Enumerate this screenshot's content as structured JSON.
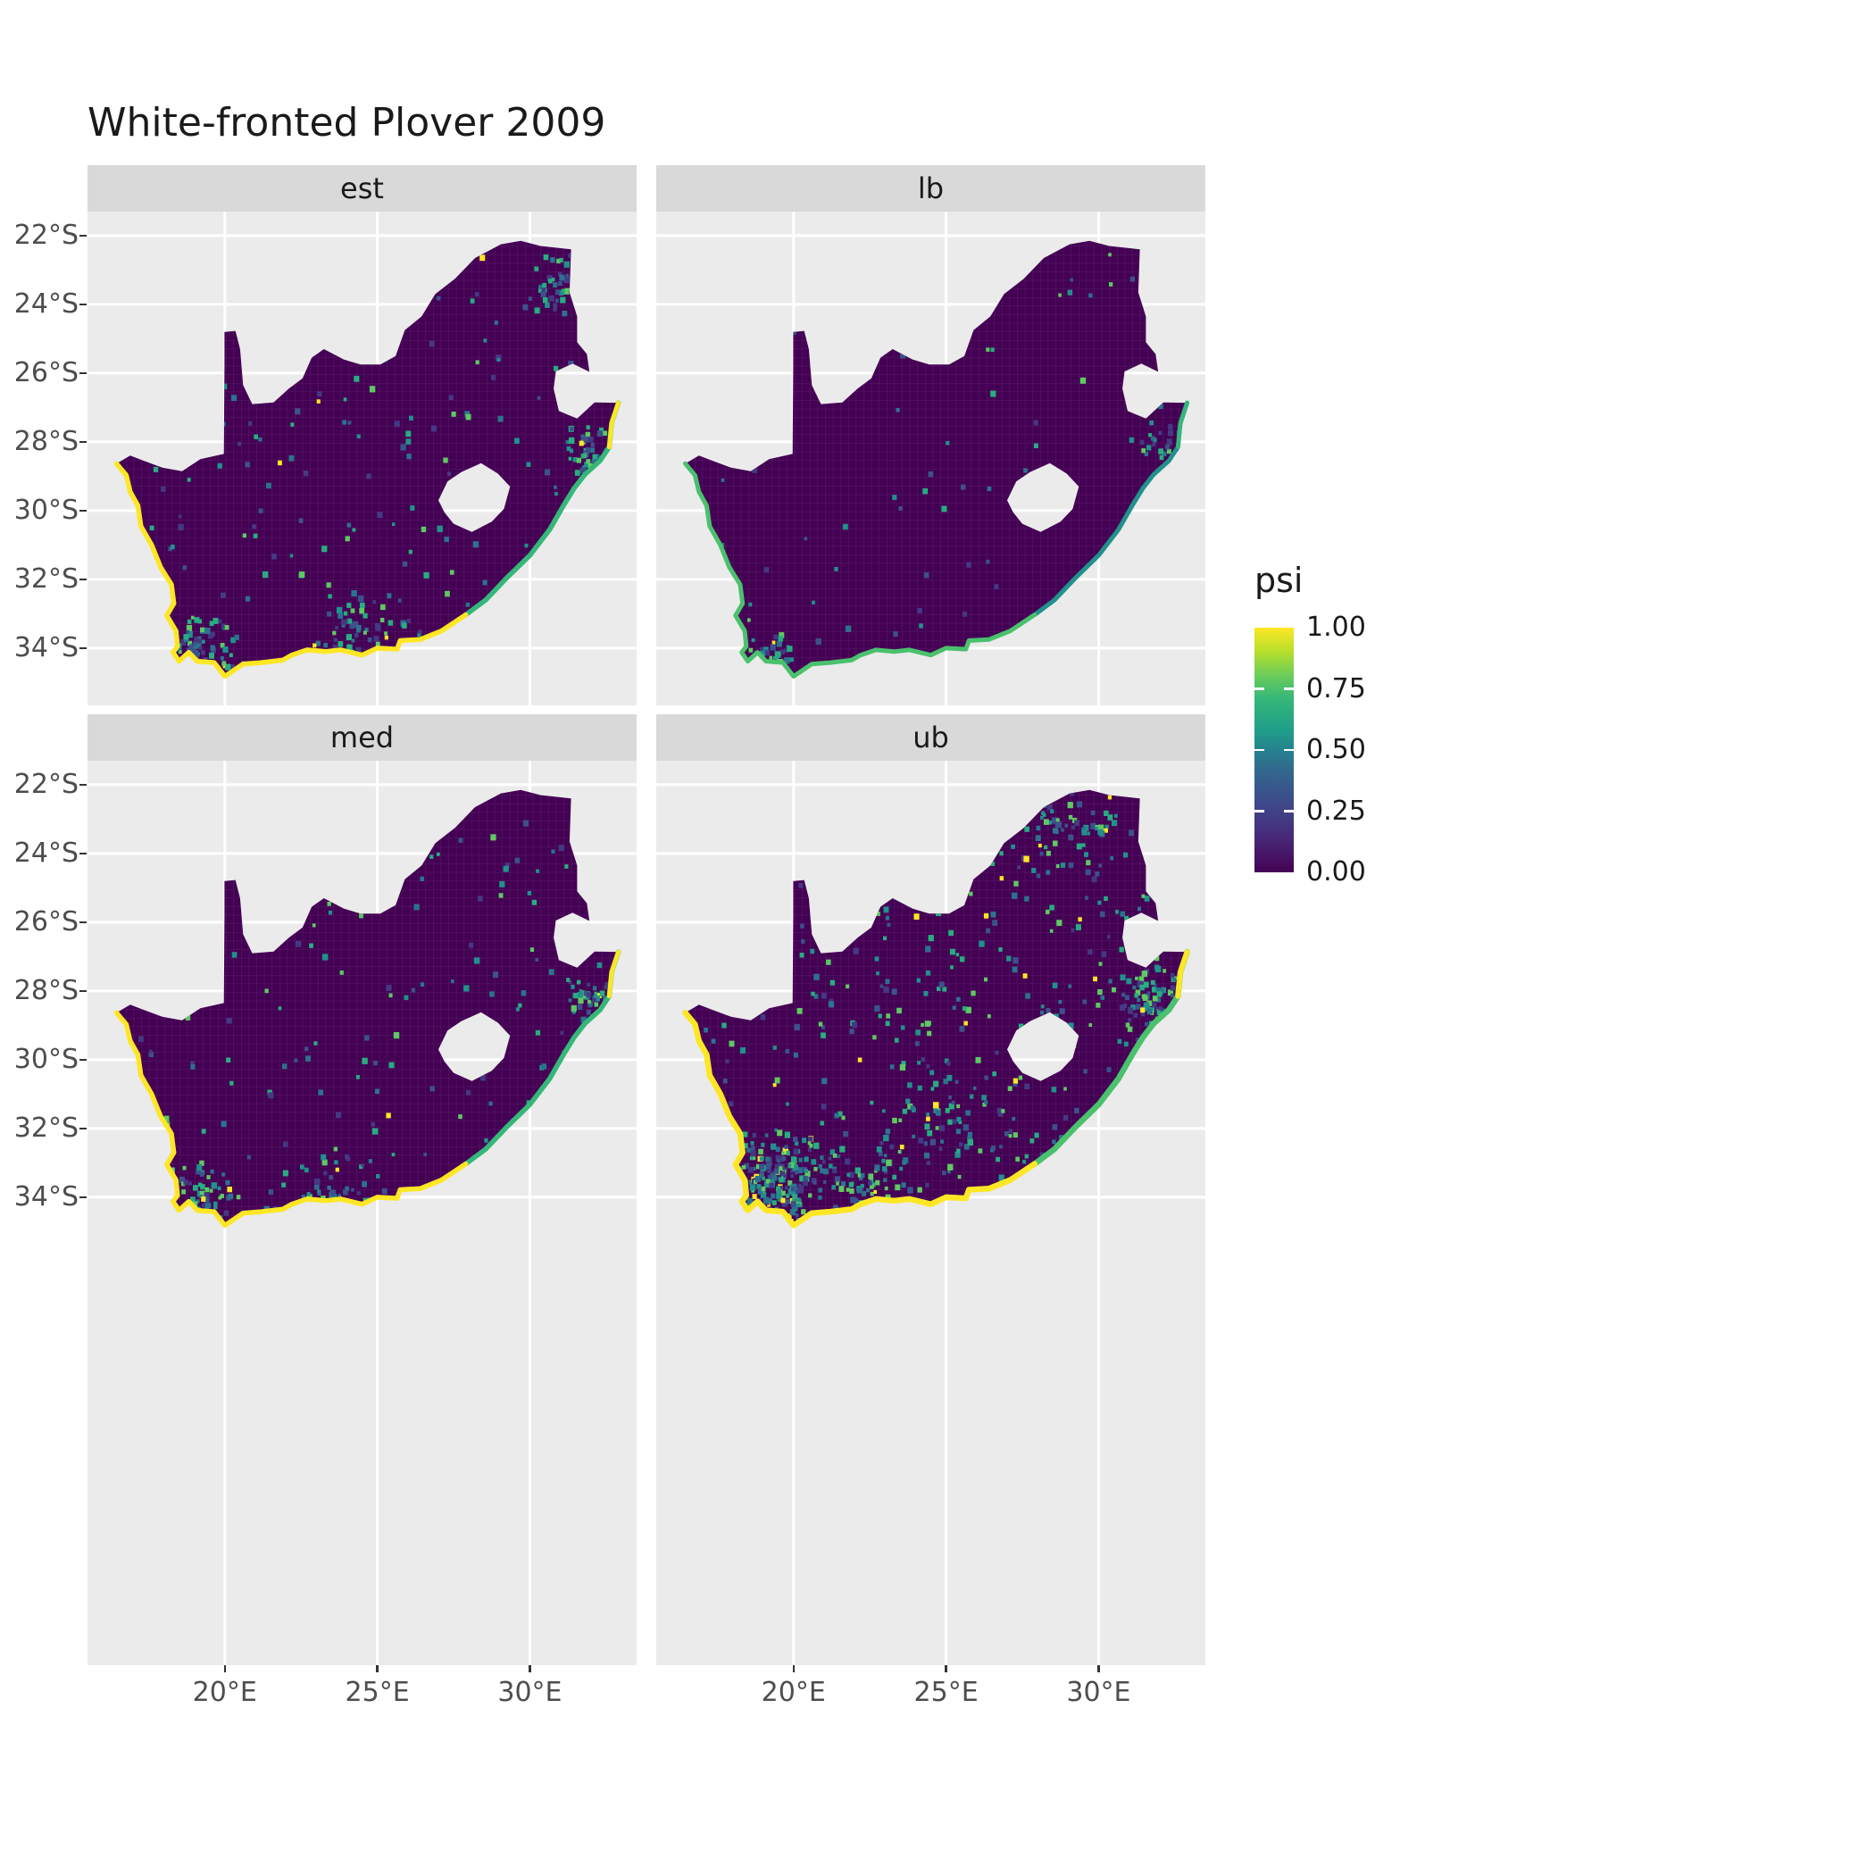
{
  "title": "White-fronted Plover 2009",
  "facets": [
    {
      "label": "est",
      "coast_sw": "#fde725",
      "coast_e": "#35b779",
      "coast_ne": "#fde725",
      "coast_width": 5.5,
      "speckles": {
        "seed": 11,
        "n": 230,
        "yellow_p": 0.02,
        "clusters": [
          [
            19.2,
            33.9,
            1.3,
            70
          ],
          [
            31.9,
            28.2,
            0.9,
            50
          ],
          [
            30.9,
            23.3,
            1.1,
            40
          ],
          [
            24.5,
            33.5,
            2.0,
            50
          ]
        ]
      }
    },
    {
      "label": "lb",
      "coast_sw": "#4ac16d",
      "coast_e": "#21918c",
      "coast_ne": "#35b779",
      "coast_width": 5,
      "speckles": {
        "seed": 22,
        "n": 80,
        "yellow_p": 0.01,
        "clusters": [
          [
            19.2,
            34.1,
            1.0,
            35
          ],
          [
            31.9,
            28.0,
            0.8,
            20
          ]
        ]
      }
    },
    {
      "label": "med",
      "coast_sw": "#fde725",
      "coast_e": "#35b779",
      "coast_ne": "#fde725",
      "coast_width": 5.5,
      "speckles": {
        "seed": 33,
        "n": 210,
        "yellow_p": 0.02,
        "clusters": [
          [
            19.2,
            33.9,
            1.3,
            60
          ],
          [
            31.9,
            28.2,
            0.9,
            45
          ],
          [
            23.5,
            33.8,
            1.8,
            45
          ]
        ]
      }
    },
    {
      "label": "ub",
      "coast_sw": "#fde725",
      "coast_e": "#4ac16d",
      "coast_ne": "#fde725",
      "coast_width": 6.5,
      "speckles": {
        "seed": 44,
        "n": 520,
        "yellow_p": 0.05,
        "clusters": [
          [
            19.4,
            33.4,
            1.8,
            200
          ],
          [
            22.3,
            33.6,
            1.6,
            70
          ],
          [
            31.6,
            28.1,
            1.2,
            70
          ],
          [
            28.8,
            23.2,
            1.8,
            50
          ],
          [
            25.0,
            31.5,
            2.5,
            60
          ]
        ]
      }
    }
  ],
  "axes": {
    "x_labels": [
      "20°E",
      "25°E",
      "30°E"
    ],
    "x_lons": [
      20,
      25,
      30
    ],
    "y_labels": [
      "22°S",
      "24°S",
      "26°S",
      "28°S",
      "30°S",
      "32°S",
      "34°S"
    ],
    "y_lats": [
      22,
      24,
      26,
      28,
      30,
      32,
      34
    ]
  },
  "legend": {
    "title": "psi",
    "labels": [
      "1.00",
      "0.75",
      "0.50",
      "0.25",
      "0.00"
    ],
    "values": [
      1.0,
      0.75,
      0.5,
      0.25,
      0.0
    ],
    "inner_ticks": [
      0.25,
      0.5,
      0.75
    ],
    "gradient": [
      [
        "#440154",
        0
      ],
      [
        "#482878",
        0.14
      ],
      [
        "#3e4989",
        0.28
      ],
      [
        "#31688e",
        0.42
      ],
      [
        "#26828e",
        0.5
      ],
      [
        "#1f9e89",
        0.58
      ],
      [
        "#35b779",
        0.71
      ],
      [
        "#6ece58",
        0.81
      ],
      [
        "#b5de2b",
        0.9
      ],
      [
        "#fde725",
        1
      ]
    ]
  },
  "colors": {
    "panel_bg": "#ebebeb",
    "strip_bg": "#d9d9d9",
    "grid": "#ffffff",
    "map_fill": "#440154",
    "axis_text": "#4d4d4d",
    "strip_text": "#1a1a1a",
    "title_text": "#1a1a1a",
    "speckle_palette": [
      "#21918c",
      "#2c728e",
      "#27ad81",
      "#3b528b",
      "#5ec962",
      "#443983"
    ],
    "speckle_yellow": "#fde725"
  },
  "chart_data": {
    "type": "heatmap",
    "subtype": "faceted_raster_map",
    "title": "White-fronted Plover 2009",
    "facets": [
      "est",
      "lb",
      "med",
      "ub"
    ],
    "variable": "psi",
    "value_range": [
      0.0,
      1.0
    ],
    "palette": "viridis",
    "region_outline": "South Africa (Lesotho shown as hole in the east; Eswatini notch on the north-eastern border; narrow northern spike near 20°E)",
    "x_axis": {
      "tick_labels": [
        "20°E",
        "25°E",
        "30°E"
      ],
      "tick_values_deg_east": [
        20,
        25,
        30
      ]
    },
    "y_axis": {
      "tick_labels": [
        "22°S",
        "24°S",
        "26°S",
        "28°S",
        "30°S",
        "32°S",
        "34°S"
      ],
      "tick_values_deg_south": [
        22,
        24,
        26,
        28,
        30,
        32,
        34
      ]
    },
    "legend": {
      "title": "psi",
      "tick_labels": [
        "1.00",
        "0.75",
        "0.50",
        "0.25",
        "0.00"
      ],
      "tick_values": [
        1.0,
        0.75,
        0.5,
        0.25,
        0.0
      ]
    },
    "pattern": "Occupancy probability psi is near 0 (dark purple) across the interior in all four facets; coastal cells are high (yellow near 1 along the west and south coasts, green/teal along the east coast). Scattered low-to-mid teal cells appear inland, densest in the 'ub' facet and sparsest in 'lb'.",
    "grid": "white major gridlines at 5-degree longitude and 2-degree latitude intervals",
    "legend_position": "right"
  }
}
